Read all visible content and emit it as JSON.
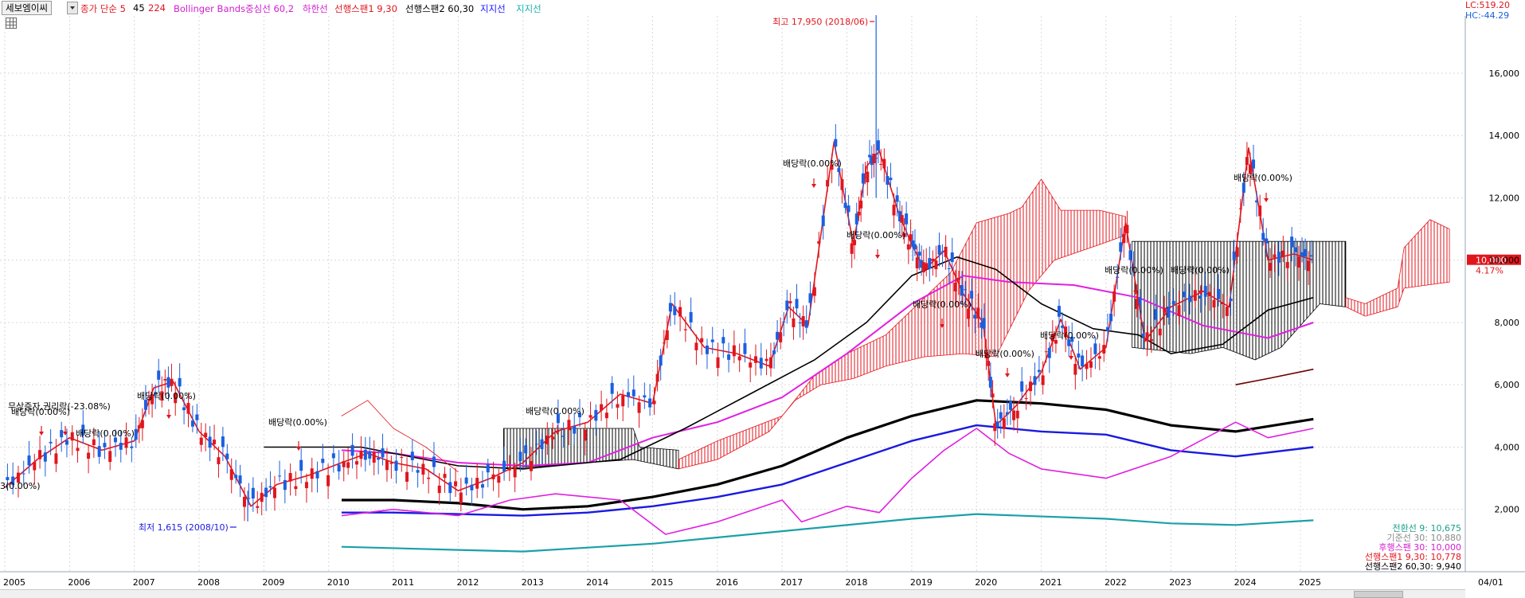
{
  "toolbar": {
    "stock_name": "세보엠이씨",
    "ma_label": "종가 단순 5",
    "ma_p2": "45",
    "ma_p3": "224",
    "bollinger_label": "Bollinger Bands중심선 60,2",
    "lower_band_label": "하한선",
    "span1_label": "선행스팬1 9,30",
    "span2_label": "선행스팬2 60,30",
    "support1_label": "지지선",
    "support2_label": "지지선"
  },
  "corner": {
    "lc": "LC:519.20",
    "hc": "HC:-44.29"
  },
  "price_tag": {
    "price": "10,000",
    "change": "4.17%"
  },
  "legend_bottom": [
    {
      "text": "전환선 9: 10,675",
      "color": "#1aa08a"
    },
    {
      "text": "기준선 30: 10,880",
      "color": "#8a8a8a"
    },
    {
      "text": "후행스팬 30: 10,000",
      "color": "#d020d0"
    },
    {
      "text": "선행스팬1 9,30: 10,778",
      "color": "#e0161e"
    },
    {
      "text": "선행스팬2 60,30: 9,940",
      "color": "#000000"
    }
  ],
  "annotations": {
    "high": "최고 17,950 (2018/06)",
    "low": "최저 1,615 (2008/10)",
    "rights": "무상증자,권리락(-23.08%)",
    "div_2005": "배당락(0.00%)",
    "div_2006": "배당락(0.00%)",
    "div_2007": "배당락(0.00%)",
    "div_2010": "배당락(0.00%)",
    "div_2013": "배당락(0.00%)",
    "div_2017": "배당락(0.00%)",
    "div_2018": "배당락(0.00%)",
    "div_2019": "배당락(0.00%)",
    "div_2020": "배당락(0.00%)",
    "div_2021": "배당락(0.00%)",
    "div_2022": "배당락(0.00%)",
    "div_2023": "배당락(0.00%)",
    "div_2024": "배당락(0.00%)",
    "left_edge": "3(0.00%)"
  },
  "chart_data": {
    "type": "candlestick",
    "title": "",
    "interval": "monthly",
    "ylim": [
      0,
      18500
    ],
    "y_ticks": [
      2000,
      4000,
      6000,
      8000,
      10000,
      12000,
      14000,
      16000
    ],
    "y_tick_labels": [
      "2,000",
      "4,000",
      "6,000",
      "8,000",
      "10,000",
      "12,000",
      "14,000",
      "16,000"
    ],
    "x_ticks": [
      "2005",
      "2006",
      "2007",
      "2008",
      "2009",
      "2010",
      "2011",
      "2012",
      "2013",
      "2014",
      "2015",
      "2016",
      "2017",
      "2018",
      "2019",
      "2020",
      "2021",
      "2022",
      "2023",
      "2024",
      "2025",
      "04/01"
    ],
    "close_series": [
      {
        "year": 2005.0,
        "value": 2700
      },
      {
        "year": 2005.5,
        "value": 3600
      },
      {
        "year": 2006.0,
        "value": 4300
      },
      {
        "year": 2006.5,
        "value": 3900
      },
      {
        "year": 2007.0,
        "value": 4200
      },
      {
        "year": 2007.3,
        "value": 5900
      },
      {
        "year": 2007.6,
        "value": 6100
      },
      {
        "year": 2008.0,
        "value": 4500
      },
      {
        "year": 2008.4,
        "value": 3700
      },
      {
        "year": 2008.8,
        "value": 2100
      },
      {
        "year": 2009.2,
        "value": 2800
      },
      {
        "year": 2009.7,
        "value": 3100
      },
      {
        "year": 2010.2,
        "value": 3500
      },
      {
        "year": 2010.6,
        "value": 3800
      },
      {
        "year": 2011.0,
        "value": 3500
      },
      {
        "year": 2011.5,
        "value": 3300
      },
      {
        "year": 2012.0,
        "value": 2600
      },
      {
        "year": 2012.5,
        "value": 3000
      },
      {
        "year": 2013.0,
        "value": 3500
      },
      {
        "year": 2013.5,
        "value": 4500
      },
      {
        "year": 2014.0,
        "value": 4800
      },
      {
        "year": 2014.5,
        "value": 5700
      },
      {
        "year": 2015.0,
        "value": 5400
      },
      {
        "year": 2015.3,
        "value": 8600
      },
      {
        "year": 2015.8,
        "value": 7200
      },
      {
        "year": 2016.3,
        "value": 7000
      },
      {
        "year": 2016.8,
        "value": 6600
      },
      {
        "year": 2017.1,
        "value": 8500
      },
      {
        "year": 2017.4,
        "value": 7900
      },
      {
        "year": 2017.8,
        "value": 13800
      },
      {
        "year": 2018.1,
        "value": 10500
      },
      {
        "year": 2018.3,
        "value": 13000
      },
      {
        "year": 2018.5,
        "value": 13500
      },
      {
        "year": 2018.8,
        "value": 11500
      },
      {
        "year": 2019.0,
        "value": 10500
      },
      {
        "year": 2019.2,
        "value": 9700
      },
      {
        "year": 2019.5,
        "value": 10300
      },
      {
        "year": 2019.8,
        "value": 8900
      },
      {
        "year": 2020.1,
        "value": 8000
      },
      {
        "year": 2020.3,
        "value": 4700
      },
      {
        "year": 2020.6,
        "value": 5300
      },
      {
        "year": 2021.0,
        "value": 6400
      },
      {
        "year": 2021.3,
        "value": 8100
      },
      {
        "year": 2021.6,
        "value": 6500
      },
      {
        "year": 2022.0,
        "value": 7200
      },
      {
        "year": 2022.3,
        "value": 11200
      },
      {
        "year": 2022.6,
        "value": 7400
      },
      {
        "year": 2023.0,
        "value": 8500
      },
      {
        "year": 2023.5,
        "value": 9000
      },
      {
        "year": 2023.9,
        "value": 8500
      },
      {
        "year": 2024.2,
        "value": 13600
      },
      {
        "year": 2024.5,
        "value": 10000
      },
      {
        "year": 2024.9,
        "value": 10200
      },
      {
        "year": 2025.2,
        "value": 10000
      }
    ]
  }
}
